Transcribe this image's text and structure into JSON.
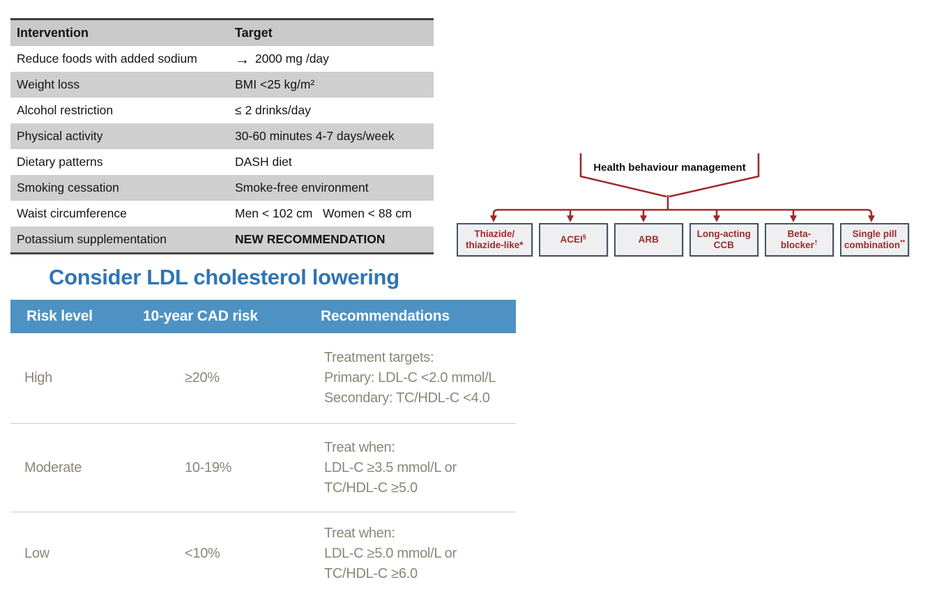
{
  "intervention_table": {
    "headers": [
      "Intervention",
      "Target"
    ],
    "rows": [
      {
        "intervention": "Reduce foods with added sodium",
        "target": "→ 2000 mg /day"
      },
      {
        "intervention": "Weight loss",
        "target": "BMI <25 kg/m²"
      },
      {
        "intervention": "Alcohol restriction",
        "target": "≤ 2 drinks/day"
      },
      {
        "intervention": "Physical activity",
        "target": "30-60 minutes 4-7 days/week"
      },
      {
        "intervention": "Dietary patterns",
        "target": "DASH diet"
      },
      {
        "intervention": "Smoking cessation",
        "target": "Smoke-free environment"
      },
      {
        "intervention": "Waist circumference",
        "target": "Men < 102 cm   Women < 88 cm"
      },
      {
        "intervention": "Potassium supplementation",
        "target": "NEW RECOMMENDATION",
        "bold": true
      }
    ]
  },
  "flowchart": {
    "title": "Health behaviour management",
    "boxes": [
      {
        "lines": [
          "Thiazide/",
          "thiazide-like*"
        ]
      },
      {
        "lines": [
          "ACEI|§"
        ]
      },
      {
        "lines": [
          "ARB"
        ]
      },
      {
        "lines": [
          "Long-acting",
          "CCB"
        ]
      },
      {
        "lines": [
          "Beta-",
          "blocker|†"
        ]
      },
      {
        "lines": [
          "Single pill",
          "combination|**"
        ]
      }
    ]
  },
  "ldl": {
    "title": "Consider LDL cholesterol lowering",
    "headers": [
      "Risk level",
      "10-year CAD risk",
      "Recommendations"
    ],
    "rows": [
      {
        "risk": "High",
        "cad": "≥20%",
        "rec": [
          "Treatment targets:",
          "Primary: LDL-C <2.0 mmol/L",
          "Secondary: TC/HDL-C <4.0"
        ]
      },
      {
        "risk": "Moderate",
        "cad": "10-19%",
        "rec": [
          "Treat when:",
          "LDL-C ≥3.5 mmol/L or",
          "TC/HDL-C ≥5.0"
        ]
      },
      {
        "risk": "Low",
        "cad": "<10%",
        "rec": [
          "Treat when:",
          "LDL-C ≥5.0 mmol/L or",
          "TC/HDL-C ≥6.0"
        ]
      }
    ]
  },
  "colors": {
    "accent_red": "#9E2B2B",
    "box_border": "#44546A",
    "box_fill": "#EFEFF1",
    "title_blue": "#2E75B6",
    "header_blue": "#4D92C3",
    "ldl_text": "#8B8677",
    "table_gray": "#CFCFCF"
  }
}
